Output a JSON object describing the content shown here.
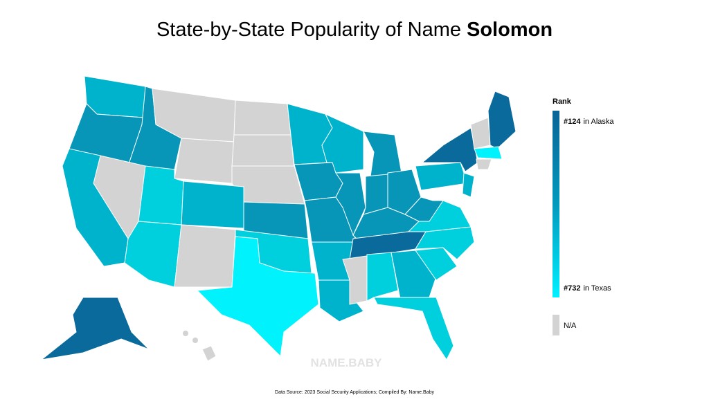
{
  "header": {
    "title": "State-by-State Popularity of Name",
    "name": "Solomon"
  },
  "legend": {
    "title": "Rank",
    "top": {
      "rank": "#124",
      "label": "in Alaska"
    },
    "bottom": {
      "rank": "#732",
      "label": "in Texas"
    },
    "na": "N/A"
  },
  "watermark": "NAME.BABY",
  "footer": {
    "source": "Data Source: 2023 Social Security Applications; Compiled By: Name.Baby"
  }
}
